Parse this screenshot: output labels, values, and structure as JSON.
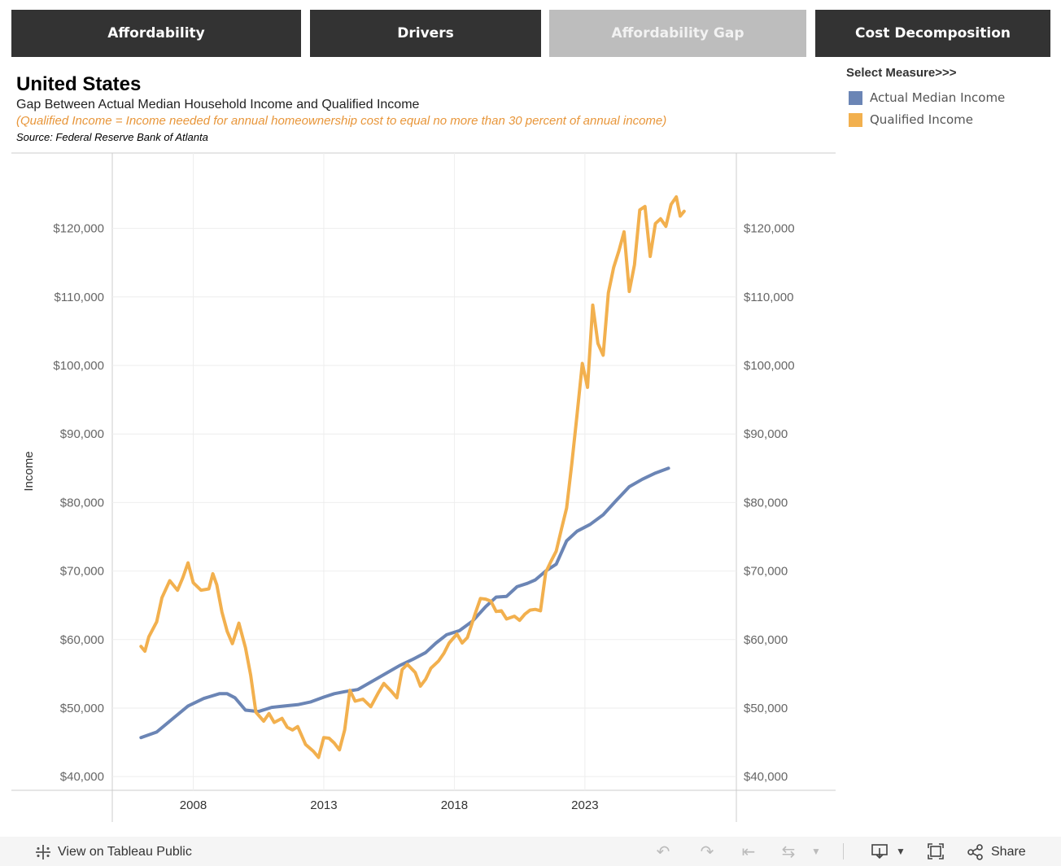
{
  "tabs": [
    {
      "label": "Affordability",
      "active": false
    },
    {
      "label": "Drivers",
      "active": false
    },
    {
      "label": "Affordability Gap",
      "active": true
    },
    {
      "label": "Cost Decomposition",
      "active": false
    }
  ],
  "header": {
    "title": "United States",
    "subtitle": "Gap Between Actual Median Household Income and Qualified Income",
    "note": "(Qualified Income = Income needed for annual homeownership cost to equal no more than 30 percent of annual income)",
    "source": "Source: Federal Reserve Bank of Atlanta"
  },
  "legend": {
    "title": "Select Measure>>>",
    "items": [
      {
        "label": "Actual Median Income",
        "color": "#6b85b5"
      },
      {
        "label": "Qualified Income",
        "color": "#f2b04e"
      }
    ]
  },
  "chart_data": {
    "type": "line",
    "ylabel": "Income",
    "ylim": [
      38000,
      131000
    ],
    "xlim": [
      2004.9,
      2028.8
    ],
    "y_ticks": [
      40000,
      50000,
      60000,
      70000,
      80000,
      90000,
      100000,
      110000,
      120000
    ],
    "y_tick_labels": [
      "$40,000",
      "$50,000",
      "$60,000",
      "$70,000",
      "$80,000",
      "$90,000",
      "$100,000",
      "$110,000",
      "$120,000"
    ],
    "x_ticks": [
      2008,
      2013,
      2018,
      2023
    ],
    "x_tick_labels": [
      "2008",
      "2013",
      "2018",
      "2023"
    ],
    "grid": true,
    "series": [
      {
        "name": "Actual Median Income",
        "color": "#6b85b5",
        "points": [
          [
            2006.0,
            45700
          ],
          [
            2006.6,
            46500
          ],
          [
            2007.2,
            48400
          ],
          [
            2007.8,
            50300
          ],
          [
            2008.4,
            51400
          ],
          [
            2009.0,
            52100
          ],
          [
            2009.3,
            52100
          ],
          [
            2009.6,
            51500
          ],
          [
            2010.0,
            49700
          ],
          [
            2010.5,
            49500
          ],
          [
            2011.0,
            50100
          ],
          [
            2011.5,
            50300
          ],
          [
            2012.0,
            50500
          ],
          [
            2012.5,
            50900
          ],
          [
            2013.0,
            51600
          ],
          [
            2013.4,
            52100
          ],
          [
            2013.8,
            52400
          ],
          [
            2014.3,
            52700
          ],
          [
            2014.9,
            54000
          ],
          [
            2015.4,
            55100
          ],
          [
            2015.9,
            56200
          ],
          [
            2016.4,
            57100
          ],
          [
            2016.9,
            58100
          ],
          [
            2017.3,
            59500
          ],
          [
            2017.7,
            60700
          ],
          [
            2018.2,
            61300
          ],
          [
            2018.7,
            62700
          ],
          [
            2019.2,
            64800
          ],
          [
            2019.6,
            66200
          ],
          [
            2020.0,
            66300
          ],
          [
            2020.4,
            67700
          ],
          [
            2020.8,
            68200
          ],
          [
            2021.1,
            68700
          ],
          [
            2021.5,
            70000
          ],
          [
            2021.9,
            71000
          ],
          [
            2022.3,
            74400
          ],
          [
            2022.7,
            75800
          ],
          [
            2023.2,
            76800
          ],
          [
            2023.7,
            78200
          ],
          [
            2024.2,
            80300
          ],
          [
            2024.7,
            82300
          ],
          [
            2025.2,
            83400
          ],
          [
            2025.7,
            84300
          ],
          [
            2026.2,
            85000
          ]
        ]
      },
      {
        "name": "Qualified Income",
        "color": "#f2b04e",
        "points": [
          [
            2006.0,
            59000
          ],
          [
            2006.15,
            58300
          ],
          [
            2006.3,
            60400
          ],
          [
            2006.6,
            62600
          ],
          [
            2006.8,
            66100
          ],
          [
            2007.1,
            68600
          ],
          [
            2007.4,
            67200
          ],
          [
            2007.6,
            69000
          ],
          [
            2007.8,
            71200
          ],
          [
            2008.0,
            68300
          ],
          [
            2008.3,
            67200
          ],
          [
            2008.6,
            67400
          ],
          [
            2008.75,
            69600
          ],
          [
            2008.9,
            68000
          ],
          [
            2009.1,
            64000
          ],
          [
            2009.3,
            61200
          ],
          [
            2009.5,
            59400
          ],
          [
            2009.75,
            62400
          ],
          [
            2010.0,
            58800
          ],
          [
            2010.2,
            54800
          ],
          [
            2010.4,
            49400
          ],
          [
            2010.7,
            48100
          ],
          [
            2010.9,
            49200
          ],
          [
            2011.1,
            47900
          ],
          [
            2011.4,
            48500
          ],
          [
            2011.6,
            47200
          ],
          [
            2011.8,
            46800
          ],
          [
            2012.0,
            47300
          ],
          [
            2012.3,
            44700
          ],
          [
            2012.6,
            43700
          ],
          [
            2012.8,
            42800
          ],
          [
            2013.0,
            45700
          ],
          [
            2013.2,
            45600
          ],
          [
            2013.4,
            44900
          ],
          [
            2013.6,
            43900
          ],
          [
            2013.8,
            46800
          ],
          [
            2014.0,
            52600
          ],
          [
            2014.2,
            51000
          ],
          [
            2014.5,
            51300
          ],
          [
            2014.8,
            50200
          ],
          [
            2015.1,
            52300
          ],
          [
            2015.3,
            53600
          ],
          [
            2015.6,
            52400
          ],
          [
            2015.8,
            51500
          ],
          [
            2016.0,
            55600
          ],
          [
            2016.2,
            56400
          ],
          [
            2016.5,
            55200
          ],
          [
            2016.7,
            53200
          ],
          [
            2016.9,
            54200
          ],
          [
            2017.1,
            55800
          ],
          [
            2017.4,
            56900
          ],
          [
            2017.6,
            58000
          ],
          [
            2017.8,
            59500
          ],
          [
            2018.1,
            60800
          ],
          [
            2018.3,
            59500
          ],
          [
            2018.5,
            60300
          ],
          [
            2018.8,
            63800
          ],
          [
            2019.0,
            66000
          ],
          [
            2019.2,
            65900
          ],
          [
            2019.4,
            65600
          ],
          [
            2019.6,
            64100
          ],
          [
            2019.8,
            64200
          ],
          [
            2020.0,
            63000
          ],
          [
            2020.3,
            63400
          ],
          [
            2020.5,
            62800
          ],
          [
            2020.7,
            63700
          ],
          [
            2020.9,
            64300
          ],
          [
            2021.1,
            64400
          ],
          [
            2021.3,
            64200
          ],
          [
            2021.5,
            69800
          ],
          [
            2021.7,
            71400
          ],
          [
            2021.9,
            72900
          ],
          [
            2022.1,
            76100
          ],
          [
            2022.3,
            79200
          ],
          [
            2022.5,
            85700
          ],
          [
            2022.7,
            92800
          ],
          [
            2022.9,
            100300
          ],
          [
            2023.1,
            96800
          ],
          [
            2023.3,
            108800
          ],
          [
            2023.5,
            103200
          ],
          [
            2023.7,
            101500
          ],
          [
            2023.9,
            110600
          ],
          [
            2024.1,
            114300
          ],
          [
            2024.3,
            116700
          ],
          [
            2024.5,
            119500
          ],
          [
            2024.7,
            110800
          ],
          [
            2024.9,
            114700
          ],
          [
            2025.1,
            122700
          ],
          [
            2025.3,
            123200
          ],
          [
            2025.5,
            115900
          ],
          [
            2025.7,
            120700
          ],
          [
            2025.9,
            121400
          ],
          [
            2026.1,
            120300
          ],
          [
            2026.3,
            123500
          ],
          [
            2026.5,
            124600
          ],
          [
            2026.65,
            121800
          ],
          [
            2026.8,
            122500
          ]
        ]
      }
    ]
  },
  "footer": {
    "view_label": "View on Tableau Public",
    "share_label": "Share"
  }
}
